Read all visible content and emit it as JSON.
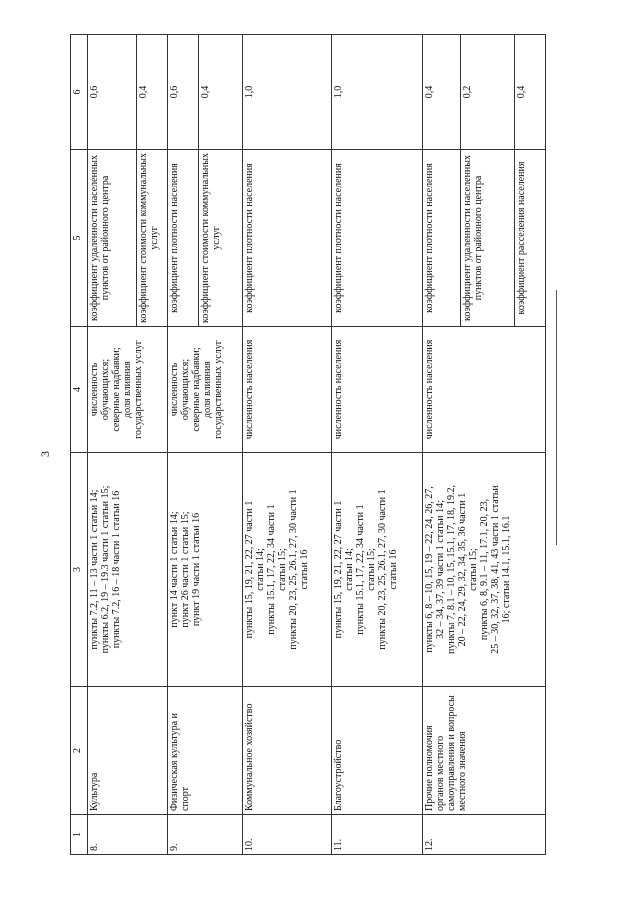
{
  "page_number": "3",
  "header": [
    "1",
    "2",
    "3",
    "4",
    "5",
    "6"
  ],
  "rows": [
    {
      "num": "8.",
      "name": "Культура",
      "points": "пункты 7.2, 11 – 13 части 1 статьи 14;\nпункты 6.2, 19 – 19.3 части 1 статьи 15;\nпункты 7.2, 16 – 18 части 1 статьи 16",
      "indicator": "численность\nобучающихся;\nсеверные надбавки;\nдоля влияния\nгосударственных услуг",
      "coefs": [
        {
          "name": "коэффициент удаленности населенных пунктов от районного центра",
          "value": "0,6"
        },
        {
          "name": "коэффициент стоимости коммунальных услуг",
          "value": "0,4"
        }
      ]
    },
    {
      "num": "9.",
      "name": "Физическая культура и спорт",
      "points": "пункт 14 части 1 статьи 14;\nпункт 26 части 1 статьи 15;\nпункт 19 части 1 статьи 16",
      "indicator": "численность\nобучающихся;\nсеверные надбавки;\nдоля влияния\nгосударственных услуг",
      "coefs": [
        {
          "name": "коэффициент плотности населения",
          "value": "0,6"
        },
        {
          "name": "коэффициент стоимости коммунальных услуг",
          "value": "0,4"
        }
      ]
    },
    {
      "num": "10.",
      "name": "Коммунальное хозяйство",
      "points": "пункты 15, 19, 21, 22, 27 части 1\nстатьи 14;\nпункты 15.1, 17, 22, 34 части 1\nстатьи 15;\nпункты 20, 23, 25, 26.1, 27, 30 части 1\nстатьи 16",
      "indicator": "численность населения",
      "coefs": [
        {
          "name": "коэффициент плотности населения",
          "value": "1,0"
        }
      ]
    },
    {
      "num": "11.",
      "name": "Благоустройство",
      "points": "пункты 15, 19, 21, 22, 27 части 1\nстатьи 14;\nпункты 15.1, 17, 22, 34 части 1\nстатьи 15;\nпункты 20, 23, 25, 26.1, 27, 30 части 1\nстатьи 16",
      "indicator": "численность населения",
      "coefs": [
        {
          "name": "коэффициент плотности населения",
          "value": "1,0"
        }
      ]
    },
    {
      "num": "12.",
      "name": "Прочие полномочия органов местного самоуправления и вопросы местного значения",
      "points": "пункты 6, 8 – 10, 15, 19 – 22, 24, 26, 27,\n32 – 34, 37, 39 части 1 статьи 14;\nпункты 7, 8.1 – 10, 15, 15.1, 17, 18, 19.2,\n20 – 22, 24, 29, 32, 34, 35, 36 части 1\nстатьи 15;\nпункты 6, 8, 9.1 – 11, 17.1, 20, 23,\n25 – 30, 32, 37, 38, 41, 43 части 1 статьи\n16; статьи 14.1, 15.1, 16.1",
      "indicator": "численность населения",
      "coefs": [
        {
          "name": "коэффициент плотности населения",
          "value": "0,4"
        },
        {
          "name": "коэффициент удаленности населенных пунктов от районного центра",
          "value": "0,2"
        },
        {
          "name": "коэффициент расселения населения",
          "value": "0,4"
        }
      ]
    }
  ]
}
